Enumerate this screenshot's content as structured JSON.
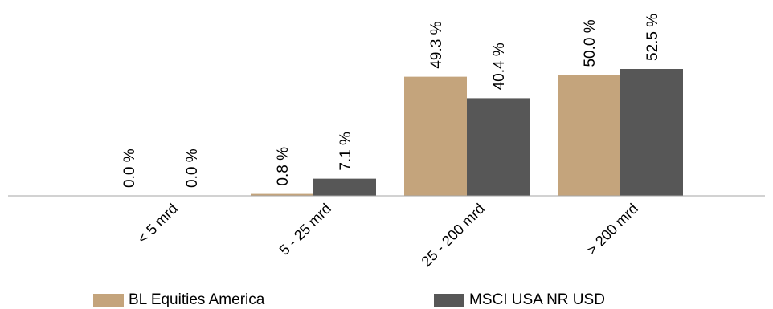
{
  "chart_data": {
    "type": "bar",
    "categories": [
      "< 5 mrd",
      "5 - 25 mrd",
      "25 - 200 mrd",
      "> 200 mrd"
    ],
    "series": [
      {
        "name": "BL Equities America",
        "values": [
          0.0,
          0.8,
          49.3,
          50.0
        ],
        "labels": [
          "0.0 %",
          "0.8 %",
          "49.3 %",
          "50.0 %"
        ],
        "color": "#c4a47c"
      },
      {
        "name": "MSCI USA NR USD",
        "values": [
          0.0,
          7.1,
          40.4,
          52.5
        ],
        "labels": [
          "0.0 %",
          "7.1 %",
          "40.4 %",
          "52.5 %"
        ],
        "color": "#575757"
      }
    ],
    "title": "",
    "xlabel": "",
    "ylabel": "",
    "ylim": [
      0,
      52.5
    ],
    "grid": false,
    "legend_position": "bottom"
  }
}
